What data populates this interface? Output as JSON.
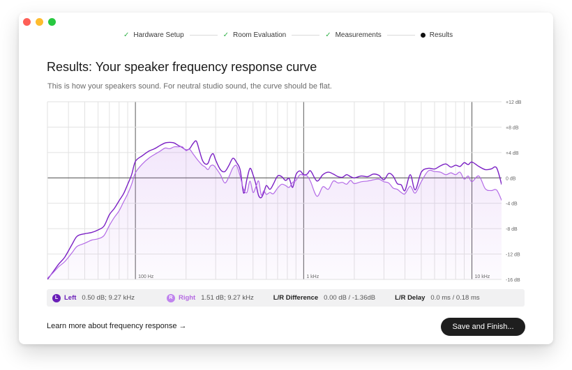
{
  "window": {
    "controls": [
      "close",
      "minimize",
      "zoom"
    ]
  },
  "stepper": {
    "steps": [
      {
        "label": "Hardware Setup",
        "state": "done"
      },
      {
        "label": "Room Evaluation",
        "state": "done"
      },
      {
        "label": "Measurements",
        "state": "done"
      },
      {
        "label": "Results",
        "state": "current"
      }
    ]
  },
  "header": {
    "title": "Results: Your speaker frequency response curve",
    "subtitle": "This is how your speakers sound. For neutral studio sound, the curve should be flat."
  },
  "chart_data": {
    "type": "line",
    "xscale": "log",
    "xlim": [
      30,
      15000
    ],
    "ylim": [
      -16,
      12
    ],
    "x_tick_labels": [
      "100 Hz",
      "1 kHz",
      "10 kHz"
    ],
    "x_ticks": [
      100,
      1000,
      10000
    ],
    "y_tick_labels": [
      "+12 dB",
      "+8 dB",
      "+4 dB",
      "0 dB",
      "-4 dB",
      "-8 dB",
      "-12 dB",
      "-16 dB"
    ],
    "y_ticks": [
      12,
      8,
      4,
      0,
      -4,
      -8,
      -12,
      -16
    ],
    "grid": true,
    "series": [
      {
        "key": "left",
        "color": "#7a1fc4",
        "x": [
          30,
          32,
          35,
          38,
          42,
          45,
          50,
          55,
          60,
          65,
          70,
          75,
          80,
          85,
          90,
          95,
          100,
          110,
          120,
          130,
          140,
          150,
          160,
          170,
          180,
          190,
          200,
          210,
          220,
          230,
          240,
          250,
          260,
          270,
          280,
          290,
          300,
          320,
          340,
          360,
          380,
          400,
          420,
          440,
          460,
          480,
          500,
          520,
          540,
          560,
          580,
          600,
          630,
          660,
          700,
          740,
          780,
          820,
          860,
          900,
          950,
          1000,
          1050,
          1100,
          1200,
          1300,
          1400,
          1500,
          1600,
          1700,
          1800,
          1900,
          2000,
          2200,
          2400,
          2600,
          2800,
          3000,
          3200,
          3400,
          3600,
          3800,
          4000,
          4300,
          4600,
          5000,
          5500,
          6000,
          6500,
          7000,
          7500,
          8000,
          8500,
          9000,
          9500,
          10000,
          11000,
          12000,
          13000,
          14000,
          15000
        ],
        "y": [
          -16,
          -15,
          -13.6,
          -12.5,
          -10.5,
          -9.2,
          -8.8,
          -8.6,
          -8.2,
          -7.6,
          -5.8,
          -4.8,
          -3.6,
          -2.5,
          -1,
          0.5,
          2.6,
          3.5,
          4.2,
          4.6,
          5.1,
          5.5,
          5.6,
          5.5,
          5.1,
          4.8,
          4.4,
          4.6,
          5.4,
          5.8,
          4.3,
          2.8,
          2.2,
          2.3,
          3.4,
          3.8,
          2.8,
          1.3,
          1.0,
          2.0,
          3.1,
          2.4,
          1.2,
          -2.4,
          -0.2,
          1.5,
          0.5,
          -1.0,
          -2.8,
          -3.1,
          -2.3,
          -1.2,
          -1.8,
          -1.0,
          0.3,
          0.2,
          -0.4,
          -0.1,
          -1.5,
          0.5,
          1.1,
          0.5,
          0.6,
          1.1,
          -0.5,
          0.5,
          0.9,
          0.6,
          0.2,
          0.1,
          0.5,
          0.2,
          0.0,
          0.3,
          0.2,
          0.6,
          0.4,
          -0.3,
          0.7,
          0.3,
          -0.9,
          -1.1,
          -2.0,
          0.5,
          -1.9,
          0.9,
          1.5,
          1.4,
          1.9,
          2.2,
          1.7,
          2.0,
          1.8,
          2.4,
          2.1,
          2.5,
          1.8,
          1.3,
          1.4,
          1.6,
          -1.0
        ]
      },
      {
        "key": "right",
        "color": "#b36ae6",
        "x": [
          30,
          32,
          35,
          38,
          42,
          45,
          50,
          55,
          60,
          65,
          70,
          75,
          80,
          85,
          90,
          95,
          100,
          110,
          120,
          130,
          140,
          150,
          160,
          170,
          180,
          190,
          200,
          210,
          220,
          230,
          240,
          250,
          260,
          270,
          280,
          290,
          300,
          320,
          340,
          360,
          380,
          400,
          420,
          440,
          460,
          480,
          500,
          520,
          540,
          560,
          580,
          600,
          630,
          660,
          700,
          740,
          780,
          820,
          860,
          900,
          950,
          1000,
          1050,
          1100,
          1200,
          1300,
          1400,
          1500,
          1600,
          1700,
          1800,
          1900,
          2000,
          2200,
          2400,
          2600,
          2800,
          3000,
          3200,
          3400,
          3600,
          3800,
          4000,
          4300,
          4600,
          5000,
          5500,
          6000,
          6500,
          7000,
          7500,
          8000,
          8500,
          9000,
          9500,
          10000,
          11000,
          12000,
          13000,
          14000,
          15000
        ],
        "y": [
          -15.8,
          -15.1,
          -14.0,
          -13.2,
          -11.8,
          -10.8,
          -10.3,
          -9.8,
          -9.6,
          -9.1,
          -7.5,
          -6.2,
          -5.2,
          -3.8,
          -2.5,
          -1.0,
          0.8,
          2.2,
          3.1,
          3.7,
          4.2,
          4.7,
          4.6,
          4.9,
          4.9,
          4.9,
          4.3,
          4.5,
          3.8,
          3.1,
          2.5,
          2.0,
          1.7,
          1.3,
          1.9,
          2.0,
          1.6,
          0.5,
          -0.8,
          0.2,
          1.6,
          1.9,
          0.2,
          -1.8,
          -2.3,
          -0.5,
          -2.3,
          -1.4,
          -0.5,
          -2.7,
          -2.0,
          -2.6,
          -2.3,
          -2.5,
          -1.6,
          -1.0,
          -1.2,
          -1.5,
          -0.7,
          -0.4,
          0.5,
          0.4,
          0.3,
          -0.6,
          -2.9,
          -1.4,
          -1.8,
          -0.5,
          -0.8,
          -0.7,
          -1.0,
          -0.4,
          -0.9,
          -0.6,
          -0.5,
          -0.3,
          -0.2,
          -0.6,
          -0.8,
          -1.6,
          -1.8,
          -2.3,
          -2.5,
          -1.3,
          -2.4,
          -0.6,
          1.1,
          1.0,
          0.9,
          0.5,
          0.8,
          0.5,
          0.9,
          -0.2,
          0.3,
          -0.6,
          0.3,
          -1.7,
          -2.0,
          -1.9,
          -3.5
        ]
      }
    ]
  },
  "stats": {
    "left": {
      "badge": "L",
      "label": "Left",
      "value": "0.50 dB; 9.27 kHz",
      "color": "#6a1fb8"
    },
    "right": {
      "badge": "R",
      "label": "Right",
      "value": "1.51 dB; 9.27 kHz",
      "color": "#b56ae2"
    },
    "lr_difference": {
      "label": "L/R Difference",
      "value": "0.00 dB / -1.36dB"
    },
    "lr_delay": {
      "label": "L/R Delay",
      "value": "0.0 ms / 0.18 ms"
    }
  },
  "footer": {
    "learn_more": "Learn more about frequency response →",
    "save_button": "Save and Finish..."
  }
}
